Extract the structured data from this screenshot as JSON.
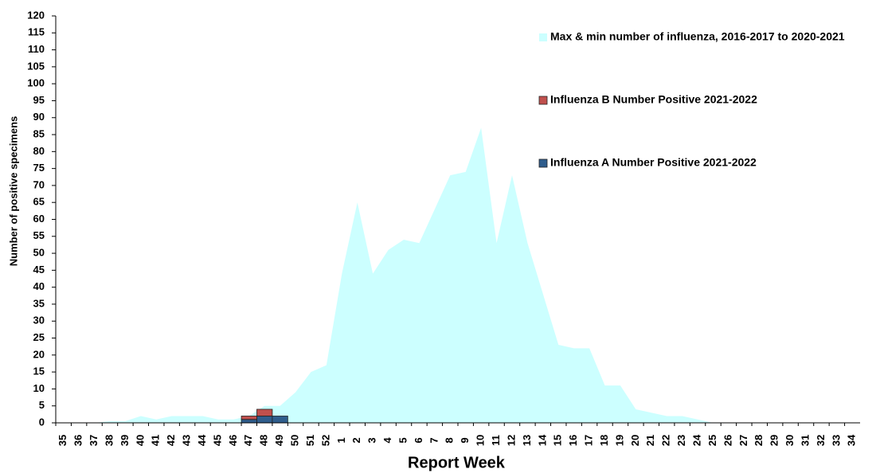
{
  "chart_data": {
    "type": "combo",
    "x_label": "Report Week",
    "y_label": "Number of positive specimens",
    "categories": [
      "35",
      "36",
      "37",
      "38",
      "39",
      "40",
      "41",
      "42",
      "43",
      "44",
      "45",
      "46",
      "47",
      "48",
      "49",
      "50",
      "51",
      "52",
      "1",
      "2",
      "3",
      "4",
      "5",
      "6",
      "7",
      "8",
      "9",
      "10",
      "11",
      "12",
      "13",
      "14",
      "15",
      "16",
      "17",
      "18",
      "19",
      "20",
      "21",
      "22",
      "23",
      "24",
      "25",
      "26",
      "27",
      "28",
      "29",
      "30",
      "31",
      "32",
      "33",
      "34"
    ],
    "series": [
      {
        "name": "Max & min number of influenza, 2016-2017 to 2020-2021",
        "type": "area",
        "color": "#ccffff",
        "values": [
          0,
          0,
          0,
          0.5,
          0.5,
          2,
          1,
          2,
          2,
          2,
          1,
          1,
          2,
          5,
          5,
          9,
          15,
          17,
          44,
          65,
          44,
          51,
          54,
          53,
          63,
          73,
          74,
          87,
          53,
          73,
          53,
          38,
          23,
          22,
          22,
          11,
          11,
          4,
          3,
          2,
          2,
          1,
          0,
          0,
          0,
          0,
          0,
          0,
          0,
          0,
          0,
          0
        ]
      },
      {
        "name": "Influenza A Number Positive 2021-2022",
        "type": "bar",
        "color": "#2f5d8c",
        "values": [
          0,
          0,
          0,
          0,
          0,
          0,
          0,
          0,
          0,
          0,
          0,
          0,
          1,
          2,
          2,
          0,
          0,
          0,
          0,
          0,
          0,
          0,
          0,
          0,
          0,
          0,
          0,
          0,
          0,
          0,
          0,
          0,
          0,
          0,
          0,
          0,
          0,
          0,
          0,
          0,
          0,
          0,
          0,
          0,
          0,
          0,
          0,
          0,
          0,
          0,
          0,
          0
        ]
      },
      {
        "name": "Influenza B Number Positive 2021-2022",
        "type": "bar",
        "color": "#c0504d",
        "values": [
          0,
          0,
          0,
          0,
          0,
          0,
          0,
          0,
          0,
          0,
          0,
          0,
          1,
          2,
          0,
          0,
          0,
          0,
          0,
          0,
          0,
          0,
          0,
          0,
          0,
          0,
          0,
          0,
          0,
          0,
          0,
          0,
          0,
          0,
          0,
          0,
          0,
          0,
          0,
          0,
          0,
          0,
          0,
          0,
          0,
          0,
          0,
          0,
          0,
          0,
          0,
          0
        ]
      }
    ],
    "ylim": [
      0,
      120
    ],
    "yticks": [
      0,
      5,
      10,
      15,
      20,
      25,
      30,
      35,
      40,
      45,
      50,
      55,
      60,
      65,
      70,
      75,
      80,
      85,
      90,
      95,
      100,
      105,
      110,
      115,
      120
    ],
    "stacked": true,
    "legend": "upper right"
  }
}
